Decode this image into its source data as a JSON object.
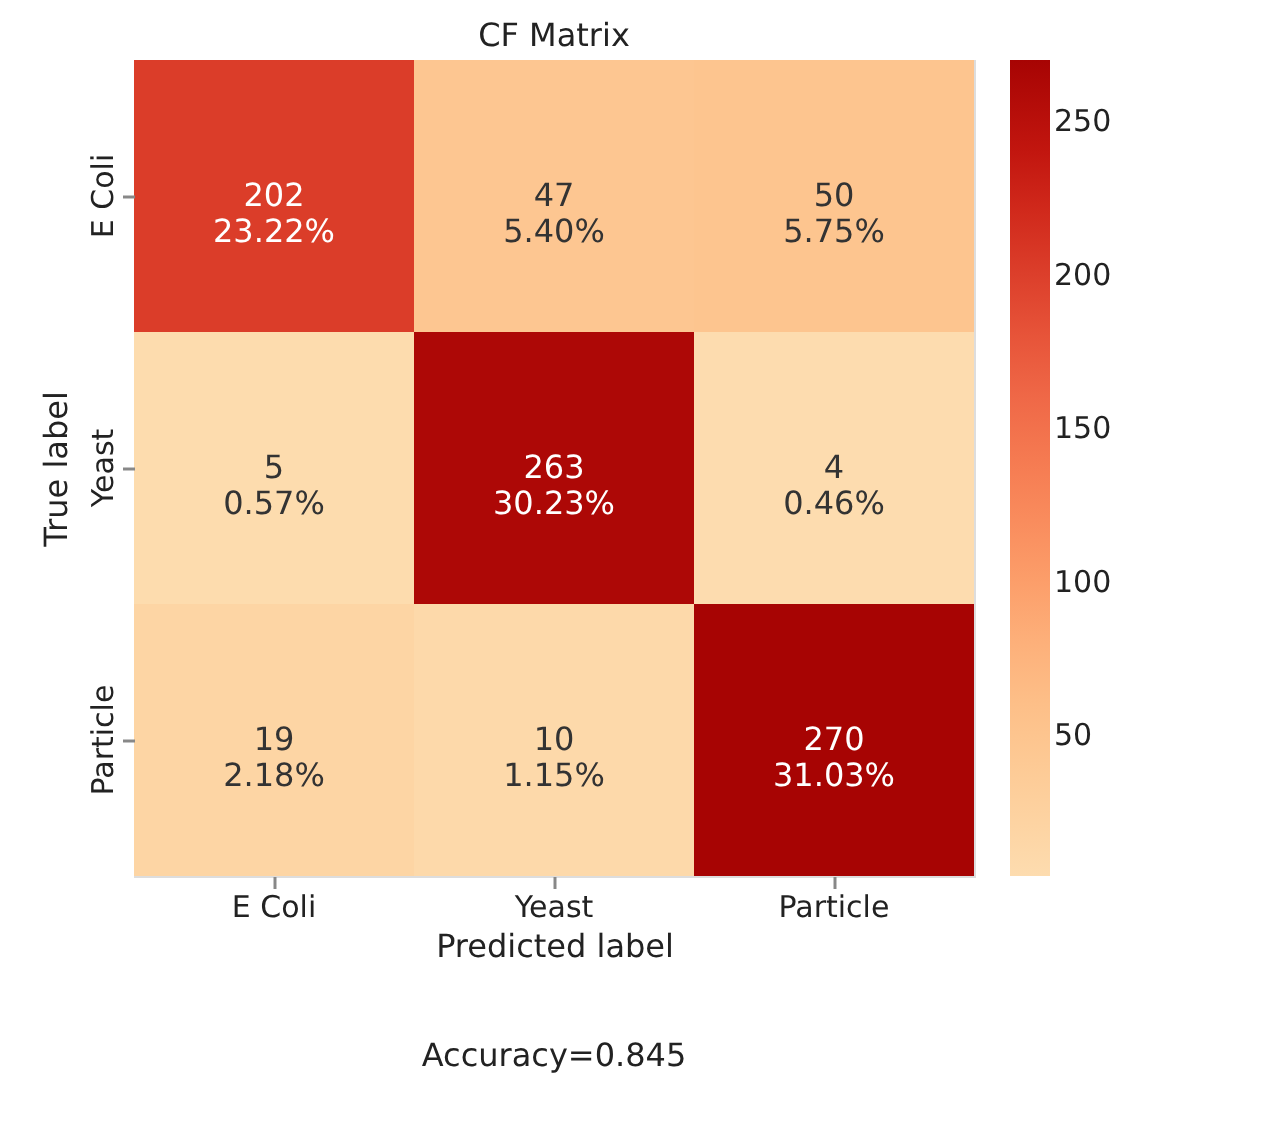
{
  "chart_data": {
    "type": "heatmap",
    "title": "CF Matrix",
    "xlabel": "Predicted label",
    "ylabel": "True label",
    "categories": [
      "E Coli",
      "Yeast",
      "Particle"
    ],
    "y_categories": [
      "E Coli",
      "Yeast",
      "Particle"
    ],
    "cells": [
      [
        202,
        47,
        50
      ],
      [
        5,
        263,
        4
      ],
      [
        19,
        10,
        270
      ]
    ],
    "cell_labels": [
      [
        "202\n23.22%",
        "47\n5.40%",
        "50\n5.75%"
      ],
      [
        "5\n0.57%",
        "263\n30.23%",
        "4\n0.46%"
      ],
      [
        "19\n2.18%",
        "10\n1.15%",
        "270\n31.03%"
      ]
    ],
    "clim": [
      4,
      270
    ],
    "cticks": [
      50,
      100,
      150,
      200,
      250
    ],
    "annotations": [
      "Accuracy=0.845"
    ]
  }
}
